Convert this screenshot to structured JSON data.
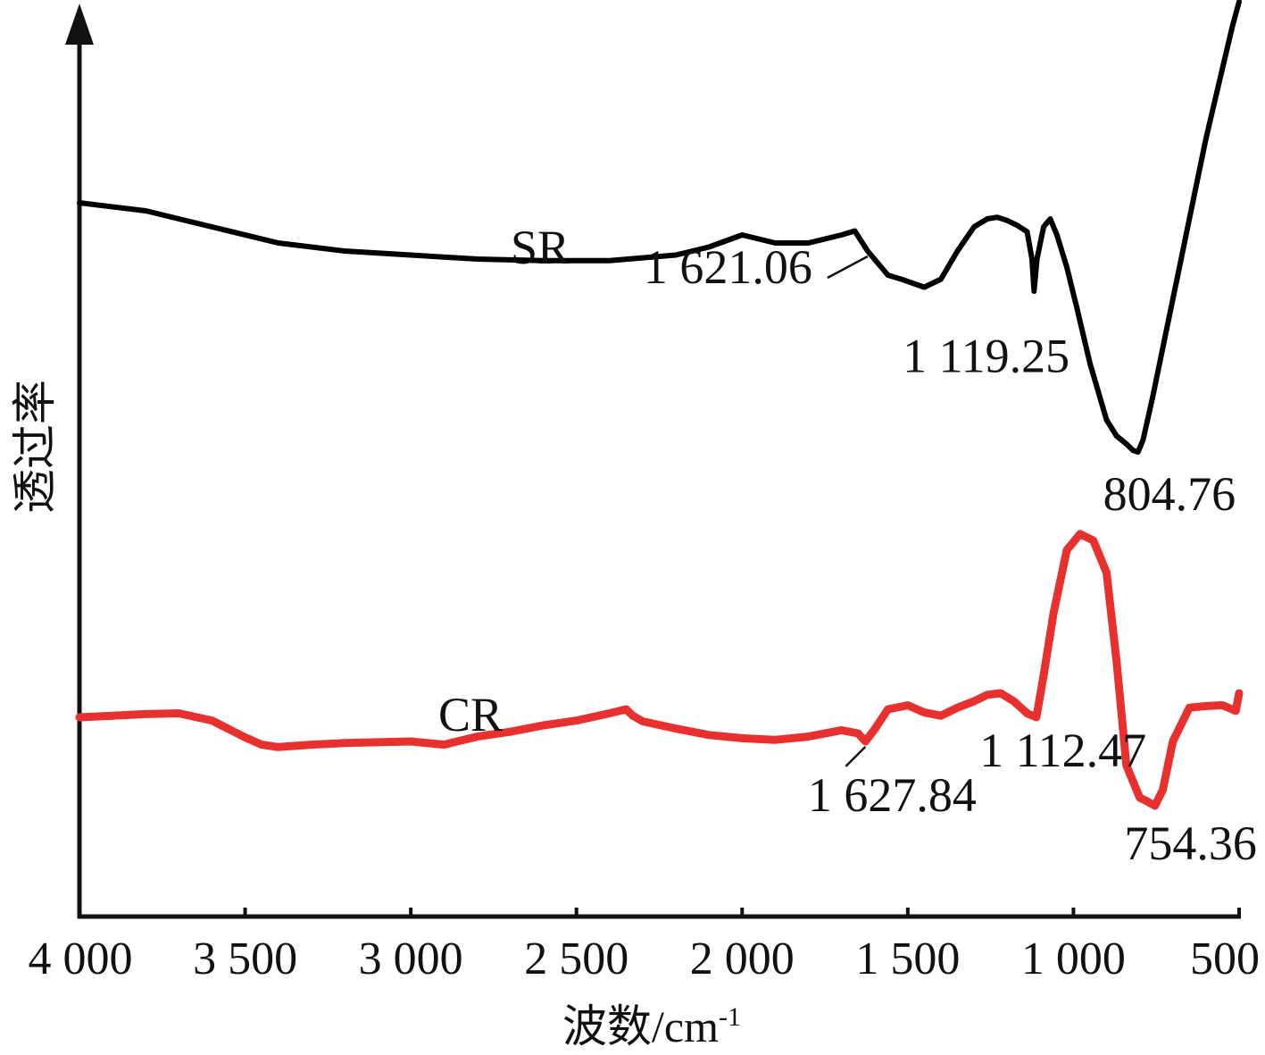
{
  "chart_data": {
    "type": "line",
    "xlabel": "波数/cm",
    "xlabel_sup": "-1",
    "ylabel": "透过率",
    "xlim": [
      4000,
      500
    ],
    "x_reversed": true,
    "y_tick_labels": false,
    "grid": false,
    "legend": "none",
    "xticks": [
      4000,
      3500,
      3000,
      2500,
      2000,
      1500,
      1000,
      500
    ],
    "xtick_labels": [
      "4 000",
      "3 500",
      "3 000",
      "2 500",
      "2 000",
      "1 500",
      "1 000",
      "500"
    ],
    "ylim": [
      0,
      100
    ],
    "series": [
      {
        "name": "SR",
        "color": "#000000",
        "x": [
          4000,
          3800,
          3600,
          3400,
          3200,
          3000,
          2800,
          2600,
          2400,
          2200,
          2100,
          2000,
          1900,
          1800,
          1700,
          1660,
          1621,
          1560,
          1520,
          1450,
          1400,
          1350,
          1300,
          1260,
          1230,
          1200,
          1170,
          1140,
          1125,
          1119,
          1110,
          1090,
          1070,
          1050,
          1020,
          990,
          950,
          900,
          870,
          840,
          820,
          805,
          790,
          760,
          720,
          680,
          640,
          600,
          560,
          520,
          500
        ],
        "y": [
          77,
          76,
          74,
          72,
          71,
          70.5,
          70,
          69.8,
          69.8,
          70.5,
          71.5,
          73,
          72,
          72,
          73,
          73.5,
          71,
          68,
          67.5,
          66.5,
          67.5,
          71,
          74,
          75,
          75.2,
          74.8,
          74.2,
          73.4,
          70,
          66,
          70,
          74,
          75,
          73,
          69,
          64,
          57,
          50,
          48,
          47,
          46.2,
          46,
          47.5,
          53,
          61,
          69,
          77,
          85,
          92,
          99,
          102
        ],
        "peak_labels": [
          {
            "x": 1621.06,
            "text": "1 621.06"
          },
          {
            "x": 1119.25,
            "text": "1 119.25"
          },
          {
            "x": 804.76,
            "text": "804.76"
          }
        ]
      },
      {
        "name": "CR",
        "color": "#e8312f",
        "x": [
          4000,
          3900,
          3800,
          3700,
          3600,
          3500,
          3450,
          3400,
          3300,
          3200,
          3100,
          3000,
          2900,
          2800,
          2700,
          2600,
          2500,
          2400,
          2350,
          2330,
          2300,
          2200,
          2100,
          2000,
          1900,
          1800,
          1700,
          1650,
          1628,
          1600,
          1560,
          1500,
          1450,
          1400,
          1350,
          1300,
          1260,
          1220,
          1180,
          1140,
          1112,
          1090,
          1060,
          1020,
          980,
          940,
          900,
          870,
          840,
          800,
          780,
          754,
          730,
          700,
          650,
          600,
          550,
          510,
          500
        ],
        "y": [
          13,
          13.2,
          13.4,
          13.5,
          12.6,
          10.5,
          9.6,
          9.3,
          9.6,
          9.8,
          9.9,
          10,
          9.6,
          10.6,
          11.2,
          12,
          12.6,
          13.5,
          14,
          13.2,
          12.5,
          11.6,
          10.8,
          10.4,
          10.2,
          10.6,
          11.4,
          11,
          10,
          11.5,
          14,
          14.5,
          13.6,
          13.2,
          14.2,
          15,
          15.8,
          16,
          15,
          13.5,
          13,
          18.2,
          26,
          33.8,
          35.8,
          35,
          31,
          20,
          7,
          3,
          2.6,
          2,
          4,
          10,
          14.2,
          14.4,
          14.5,
          13.8,
          16
        ],
        "peak_labels": [
          {
            "x": 1627.84,
            "text": "1 627.84"
          },
          {
            "x": 1112.47,
            "text": "1 112.47"
          },
          {
            "x": 754.36,
            "text": "754.36"
          }
        ]
      }
    ]
  }
}
